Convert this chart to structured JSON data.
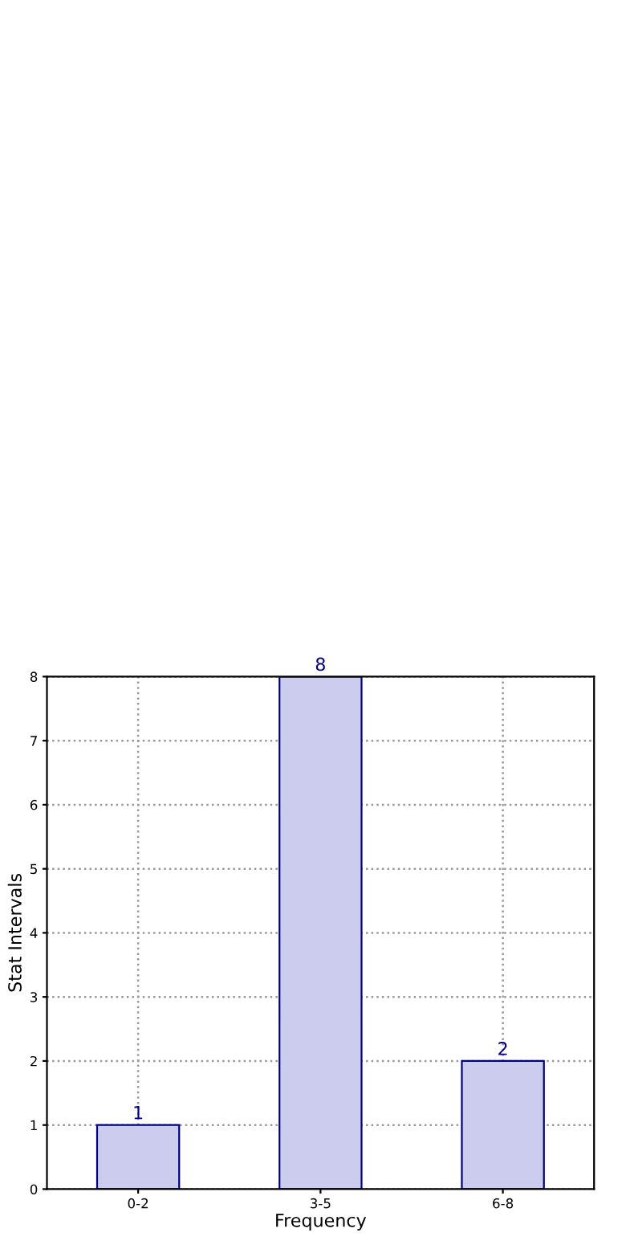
{
  "chart_data": {
    "type": "bar",
    "xlabel": "Frequency",
    "ylabel": "Stat Intervals",
    "categories": [
      "0-2",
      "3-5",
      "6-8"
    ],
    "values": [
      1,
      8,
      2
    ],
    "color": "#ccccee",
    "ylim": [
      0,
      8
    ],
    "yticks": [
      0,
      1,
      2,
      3,
      4,
      5,
      6,
      7,
      8
    ],
    "grid": true,
    "data_labels": true
  }
}
